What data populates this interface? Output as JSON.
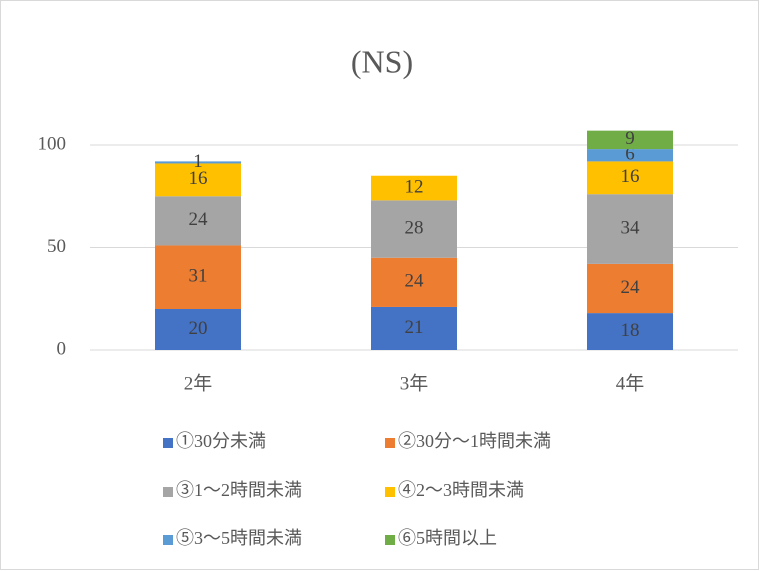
{
  "chart_data": {
    "type": "stacked_bar",
    "title": "(NS)",
    "categories": [
      "2年",
      "3年",
      "4年"
    ],
    "series": [
      {
        "name": "①30分未満",
        "color": "#4472c4",
        "values": [
          20,
          21,
          18
        ]
      },
      {
        "name": "②30分～1時間未満",
        "color": "#ed7d31",
        "values": [
          31,
          24,
          24
        ]
      },
      {
        "name": "③1～2時間未満",
        "color": "#a5a5a5",
        "values": [
          24,
          28,
          34
        ]
      },
      {
        "name": "④2～3時間未満",
        "color": "#ffc000",
        "values": [
          16,
          12,
          16
        ]
      },
      {
        "name": "⑤3～5時間未満",
        "color": "#5b9bd5",
        "values": [
          1,
          null,
          6
        ]
      },
      {
        "name": "⑥5時間以上",
        "color": "#70ad47",
        "values": [
          null,
          null,
          9
        ]
      }
    ],
    "ylim": [
      0,
      120
    ],
    "yticks": [
      0,
      50,
      100
    ],
    "grid": true,
    "legend": "bottom"
  }
}
